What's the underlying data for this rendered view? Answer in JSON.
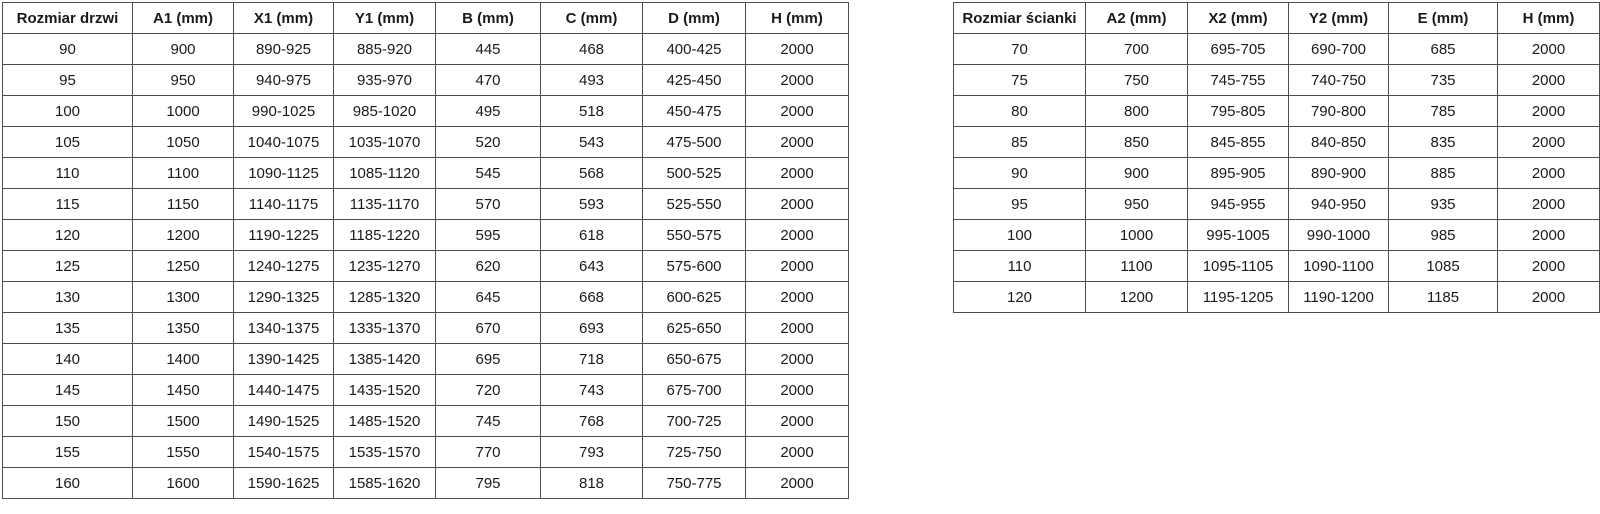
{
  "door_table": {
    "headers": [
      "Rozmiar drzwi",
      "A1 (mm)",
      "X1 (mm)",
      "Y1 (mm)",
      "B (mm)",
      "C (mm)",
      "D (mm)",
      "H (mm)"
    ],
    "rows": [
      [
        "90",
        "900",
        "890-925",
        "885-920",
        "445",
        "468",
        "400-425",
        "2000"
      ],
      [
        "95",
        "950",
        "940-975",
        "935-970",
        "470",
        "493",
        "425-450",
        "2000"
      ],
      [
        "100",
        "1000",
        "990-1025",
        "985-1020",
        "495",
        "518",
        "450-475",
        "2000"
      ],
      [
        "105",
        "1050",
        "1040-1075",
        "1035-1070",
        "520",
        "543",
        "475-500",
        "2000"
      ],
      [
        "110",
        "1100",
        "1090-1125",
        "1085-1120",
        "545",
        "568",
        "500-525",
        "2000"
      ],
      [
        "115",
        "1150",
        "1140-1175",
        "1135-1170",
        "570",
        "593",
        "525-550",
        "2000"
      ],
      [
        "120",
        "1200",
        "1190-1225",
        "1185-1220",
        "595",
        "618",
        "550-575",
        "2000"
      ],
      [
        "125",
        "1250",
        "1240-1275",
        "1235-1270",
        "620",
        "643",
        "575-600",
        "2000"
      ],
      [
        "130",
        "1300",
        "1290-1325",
        "1285-1320",
        "645",
        "668",
        "600-625",
        "2000"
      ],
      [
        "135",
        "1350",
        "1340-1375",
        "1335-1370",
        "670",
        "693",
        "625-650",
        "2000"
      ],
      [
        "140",
        "1400",
        "1390-1425",
        "1385-1420",
        "695",
        "718",
        "650-675",
        "2000"
      ],
      [
        "145",
        "1450",
        "1440-1475",
        "1435-1520",
        "720",
        "743",
        "675-700",
        "2000"
      ],
      [
        "150",
        "1500",
        "1490-1525",
        "1485-1520",
        "745",
        "768",
        "700-725",
        "2000"
      ],
      [
        "155",
        "1550",
        "1540-1575",
        "1535-1570",
        "770",
        "793",
        "725-750",
        "2000"
      ],
      [
        "160",
        "1600",
        "1590-1625",
        "1585-1620",
        "795",
        "818",
        "750-775",
        "2000"
      ]
    ]
  },
  "wall_table": {
    "headers": [
      "Rozmiar ścianki",
      "A2 (mm)",
      "X2 (mm)",
      "Y2 (mm)",
      "E (mm)",
      "H (mm)"
    ],
    "rows": [
      [
        "70",
        "700",
        "695-705",
        "690-700",
        "685",
        "2000"
      ],
      [
        "75",
        "750",
        "745-755",
        "740-750",
        "735",
        "2000"
      ],
      [
        "80",
        "800",
        "795-805",
        "790-800",
        "785",
        "2000"
      ],
      [
        "85",
        "850",
        "845-855",
        "840-850",
        "835",
        "2000"
      ],
      [
        "90",
        "900",
        "895-905",
        "890-900",
        "885",
        "2000"
      ],
      [
        "95",
        "950",
        "945-955",
        "940-950",
        "935",
        "2000"
      ],
      [
        "100",
        "1000",
        "995-1005",
        "990-1000",
        "985",
        "2000"
      ],
      [
        "110",
        "1100",
        "1095-1105",
        "1090-1100",
        "1085",
        "2000"
      ],
      [
        "120",
        "1200",
        "1195-1205",
        "1190-1200",
        "1185",
        "2000"
      ]
    ]
  },
  "colors": {
    "border": "#4d4d4d",
    "text": "#1a1a1a",
    "background": "#ffffff"
  }
}
